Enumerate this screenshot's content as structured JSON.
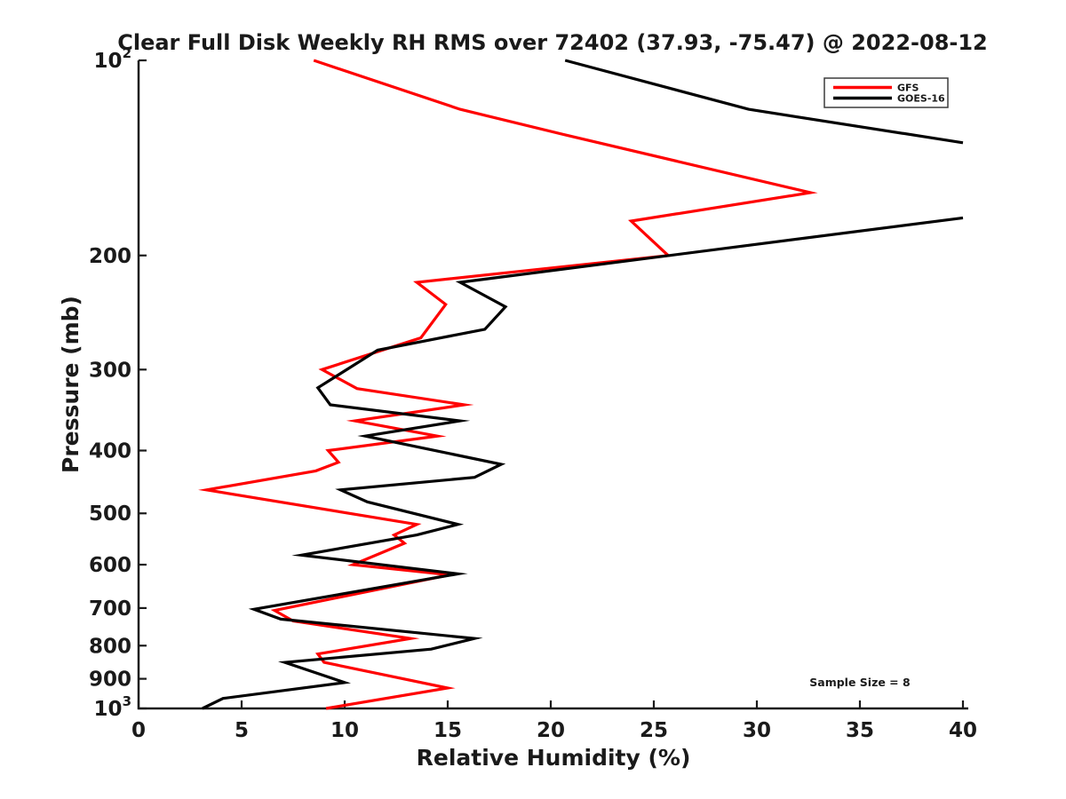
{
  "chart_data": {
    "type": "line",
    "title": "Clear Full Disk Weekly RH RMS over 72402 (37.93, -75.47) @ 2022-08-12",
    "xlabel": "Relative Humidity (%)",
    "ylabel": "Pressure (mb)",
    "xlim": [
      0,
      40
    ],
    "x_ticks": [
      0,
      5,
      10,
      15,
      20,
      25,
      30,
      35,
      40
    ],
    "y_scale": "log",
    "ylim": [
      100,
      1000
    ],
    "y_ticks": [
      100,
      200,
      300,
      400,
      500,
      600,
      700,
      800,
      900,
      1000
    ],
    "y_tick_labels": [
      "10^2",
      "200",
      "300",
      "400",
      "500",
      "600",
      "700",
      "800",
      "900",
      "10^3"
    ],
    "grid": false,
    "legend": {
      "position": "top-right",
      "entries": [
        "GFS",
        "GOES-16"
      ]
    },
    "annotation": "Sample Size = 8",
    "axis_color": "#1a1a1a",
    "series": [
      {
        "name": "GFS",
        "color": "#ff0000",
        "note_units": "points are [relative_humidity_percent, pressure_mb]",
        "segments": [
          [
            [
              8.5,
              100
            ],
            [
              15.6,
              119
            ],
            [
              21.0,
              131
            ],
            [
              32.6,
              160
            ],
            [
              23.9,
              177
            ],
            [
              25.7,
              200
            ],
            [
              13.5,
              220
            ],
            [
              14.9,
              238
            ],
            [
              13.7,
              268
            ],
            [
              8.9,
              300
            ],
            [
              10.6,
              321
            ],
            [
              15.8,
              340
            ],
            [
              10.5,
              360
            ],
            [
              14.5,
              380
            ],
            [
              9.2,
              400
            ],
            [
              9.7,
              417
            ],
            [
              8.6,
              430
            ],
            [
              3.3,
              460
            ],
            [
              13.5,
              520
            ],
            [
              12.4,
              540
            ],
            [
              12.9,
              556
            ],
            [
              10.4,
              600
            ],
            [
              15.1,
              622
            ],
            [
              6.6,
              706
            ],
            [
              7.5,
              733
            ],
            [
              13.2,
              780
            ],
            [
              8.7,
              824
            ],
            [
              9.0,
              849
            ],
            [
              15.0,
              930
            ],
            [
              9.1,
              1000
            ]
          ]
        ]
      },
      {
        "name": "GOES-16",
        "color": "#000000",
        "note_units": "points are [relative_humidity_percent, pressure_mb]; line exceeds x-limit (40%) between ~134 and ~175 mb (clipped)",
        "segments": [
          [
            [
              20.7,
              100
            ],
            [
              29.6,
              119
            ],
            [
              40,
              134
            ]
          ],
          [
            [
              40,
              175
            ],
            [
              15.6,
              220
            ],
            [
              17.8,
              240
            ],
            [
              16.8,
              260
            ],
            [
              11.6,
              280
            ],
            [
              8.7,
              320
            ],
            [
              9.3,
              340
            ],
            [
              15.6,
              360
            ],
            [
              11.0,
              380
            ],
            [
              17.6,
              420
            ],
            [
              16.3,
              440
            ],
            [
              9.8,
              460
            ],
            [
              11.1,
              480
            ],
            [
              15.5,
              520
            ],
            [
              13.5,
              540
            ],
            [
              7.9,
              580
            ],
            [
              15.5,
              620
            ],
            [
              5.6,
              703
            ],
            [
              6.9,
              728
            ],
            [
              16.3,
              780
            ],
            [
              14.2,
              810
            ],
            [
              7.1,
              849
            ],
            [
              10.0,
              912
            ],
            [
              4.1,
              965
            ],
            [
              3.1,
              1000
            ]
          ]
        ]
      }
    ]
  }
}
